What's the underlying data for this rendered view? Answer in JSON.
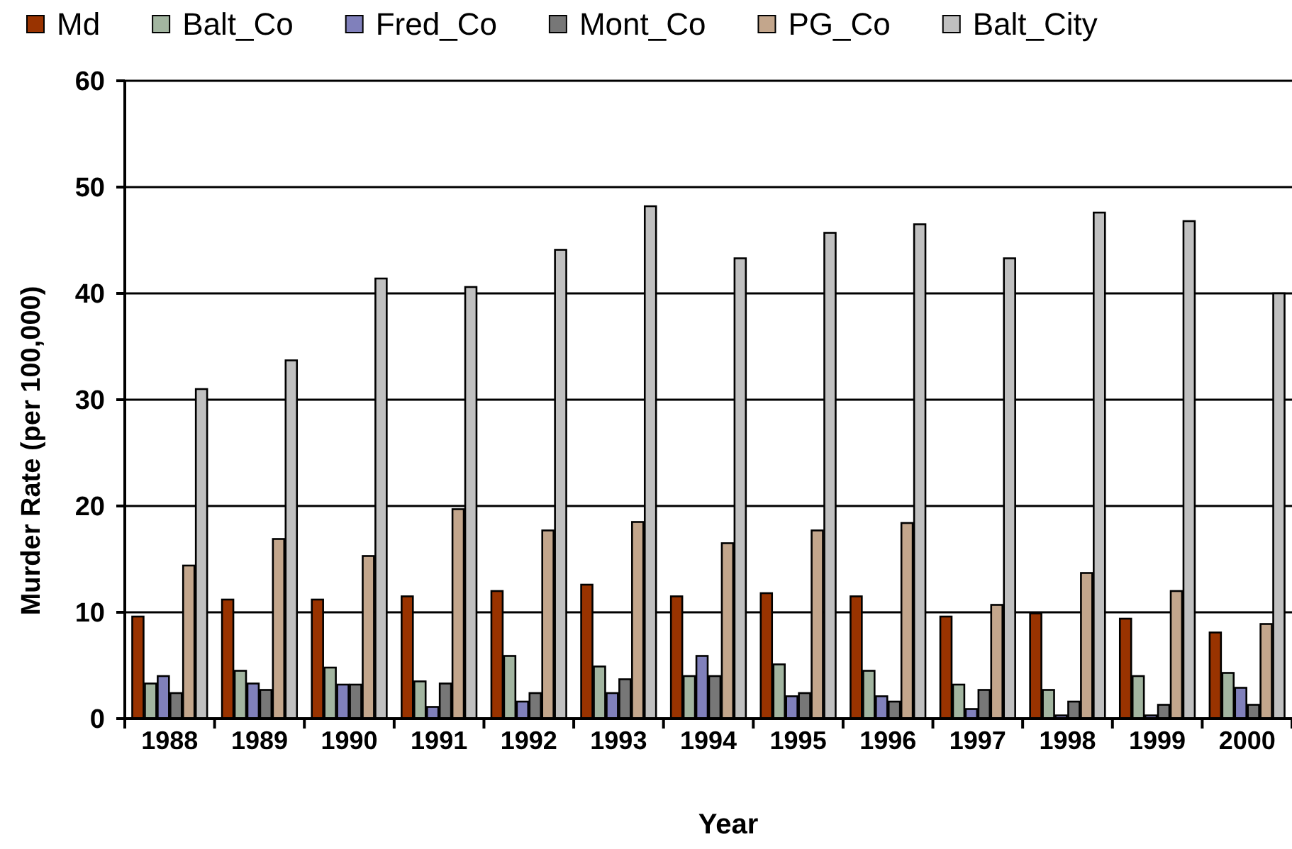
{
  "chart_data": {
    "type": "bar",
    "xlabel": "Year",
    "ylabel": "Murder Rate (per 100,000)",
    "categories": [
      "1988",
      "1989",
      "1990",
      "1991",
      "1992",
      "1993",
      "1994",
      "1995",
      "1996",
      "1997",
      "1998",
      "1999",
      "2000"
    ],
    "series": [
      {
        "name": "Md",
        "color": "#993300",
        "values": [
          9.6,
          11.2,
          11.2,
          11.5,
          12.0,
          12.6,
          11.5,
          11.8,
          11.5,
          9.6,
          9.9,
          9.4,
          8.1
        ]
      },
      {
        "name": "Balt_Co",
        "color": "#a2b5a0",
        "values": [
          3.3,
          4.5,
          4.8,
          3.5,
          5.9,
          4.9,
          4.0,
          5.1,
          4.5,
          3.2,
          2.7,
          4.0,
          4.3
        ]
      },
      {
        "name": "Fred_Co",
        "color": "#8080bb",
        "values": [
          4.0,
          3.3,
          3.2,
          1.1,
          1.6,
          2.4,
          5.9,
          2.1,
          2.1,
          0.9,
          0.3,
          0.3,
          2.9
        ]
      },
      {
        "name": "Mont_Co",
        "color": "#777777",
        "values": [
          2.4,
          2.7,
          3.2,
          3.3,
          2.4,
          3.7,
          4.0,
          2.4,
          1.6,
          2.7,
          1.6,
          1.3,
          1.3
        ]
      },
      {
        "name": "PG_Co",
        "color": "#c3a68c",
        "values": [
          14.4,
          16.9,
          15.3,
          19.7,
          17.7,
          18.5,
          16.5,
          17.7,
          18.4,
          10.7,
          13.7,
          12.0,
          8.9
        ]
      },
      {
        "name": "Balt_City",
        "color": "#c0c0c0",
        "values": [
          31.0,
          33.7,
          41.4,
          40.6,
          44.1,
          48.2,
          43.3,
          45.7,
          46.5,
          43.3,
          47.6,
          46.8,
          40.0
        ]
      }
    ],
    "ylim": [
      0,
      60
    ],
    "yticks": [
      0,
      10,
      20,
      30,
      40,
      50,
      60
    ],
    "grid": "y",
    "legend": "top"
  }
}
